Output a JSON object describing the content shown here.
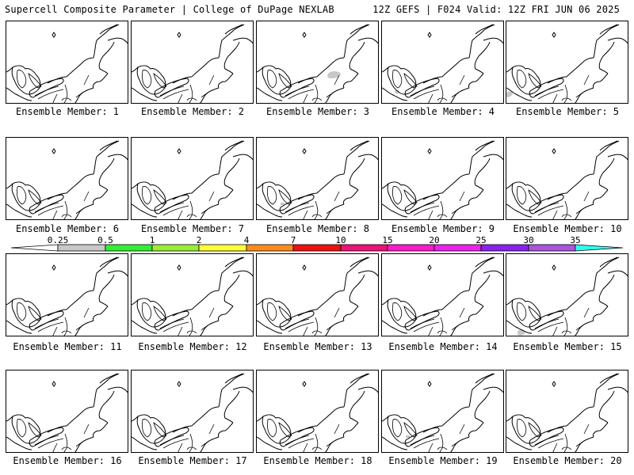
{
  "header": {
    "title_left": "Supercell Composite Parameter | College of DuPage NEXLAB",
    "title_right": "12Z GEFS | F024 Valid: 12Z FRI JUN 06 2025"
  },
  "members": [
    {
      "label": "Ensemble Member: 1",
      "blobs": []
    },
    {
      "label": "Ensemble Member: 2",
      "blobs": []
    },
    {
      "label": "Ensemble Member: 3",
      "blobs": [
        "large"
      ]
    },
    {
      "label": "Ensemble Member: 4",
      "blobs": [
        "small"
      ]
    },
    {
      "label": "Ensemble Member: 5",
      "blobs": [
        "edge"
      ]
    },
    {
      "label": "Ensemble Member: 6",
      "blobs": []
    },
    {
      "label": "Ensemble Member: 7",
      "blobs": []
    },
    {
      "label": "Ensemble Member: 8",
      "blobs": [
        "tiny"
      ]
    },
    {
      "label": "Ensemble Member: 9",
      "blobs": []
    },
    {
      "label": "Ensemble Member: 10",
      "blobs": []
    },
    {
      "label": "Ensemble Member: 11",
      "blobs": []
    },
    {
      "label": "Ensemble Member: 12",
      "blobs": []
    },
    {
      "label": "Ensemble Member: 13",
      "blobs": []
    },
    {
      "label": "Ensemble Member: 14",
      "blobs": []
    },
    {
      "label": "Ensemble Member: 15",
      "blobs": [
        "bottom"
      ]
    },
    {
      "label": "Ensemble Member: 16",
      "blobs": []
    },
    {
      "label": "Ensemble Member: 17",
      "blobs": []
    },
    {
      "label": "Ensemble Member: 18",
      "blobs": []
    },
    {
      "label": "Ensemble Member: 19",
      "blobs": [
        "tiny"
      ]
    },
    {
      "label": "Ensemble Member: 20",
      "blobs": []
    }
  ],
  "colorbar": {
    "ticks": [
      "0.25",
      "0.5",
      "1",
      "2",
      "4",
      "7",
      "10",
      "15",
      "20",
      "25",
      "30",
      "35"
    ],
    "colors": [
      "#ffffff",
      "#c8c8c8",
      "#33ee33",
      "#99ee33",
      "#ffff33",
      "#ff8c1a",
      "#ee1111",
      "#ee1177",
      "#ff1acc",
      "#ee22ee",
      "#8822ee",
      "#aa55dd",
      "#33ffee"
    ]
  }
}
